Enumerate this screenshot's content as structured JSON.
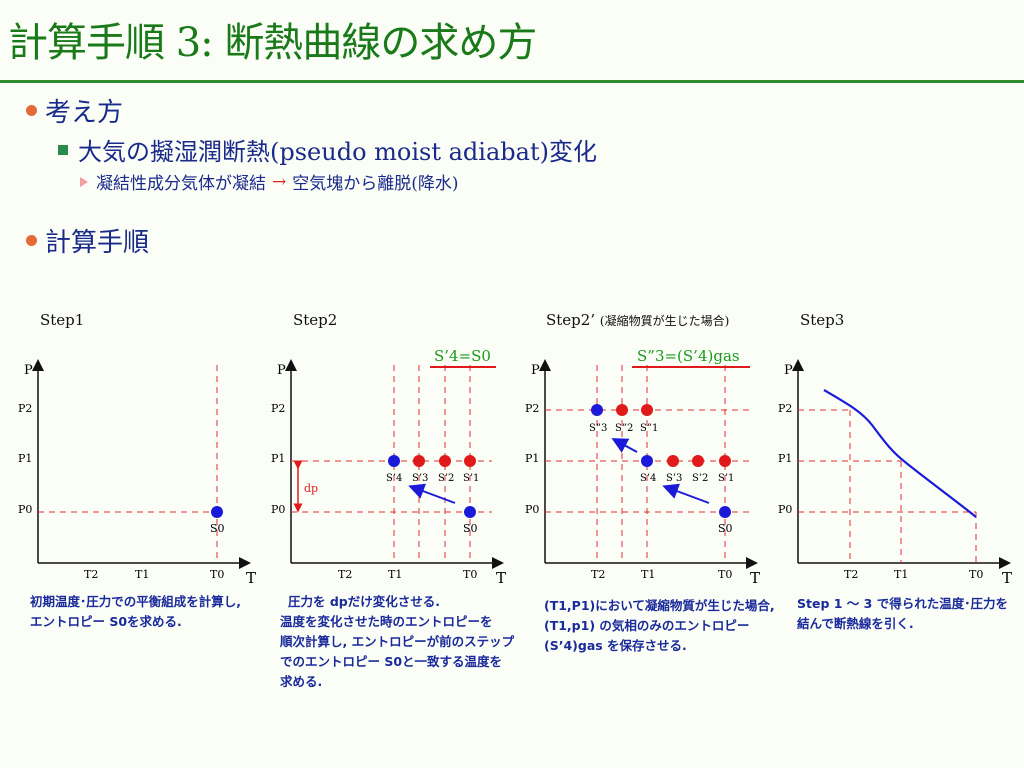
{
  "title": "計算手順 3: 断熱曲線の求め方",
  "bullets": {
    "b1": "考え方",
    "b1_sub": "大気の擬湿潤断熱(pseudo moist adiabat)変化",
    "b1_sub2_a": "凝結性成分気体が凝結",
    "b1_sub2_arrow": "→",
    "b1_sub2_b": "空気塊から離脱(降水)",
    "b2": "計算手順"
  },
  "steps": [
    {
      "label": "Step1",
      "note": ""
    },
    {
      "label": "Step2",
      "note": ""
    },
    {
      "label": "Step2’",
      "note": "(凝縮物質が生じた場合)"
    },
    {
      "label": "Step3",
      "note": ""
    }
  ],
  "annotations": {
    "s4eq": "S’4=S0",
    "s3gas": "S”3=(S’4)gas",
    "dp": "dp"
  },
  "axis": {
    "P": "P",
    "T": "T",
    "p2": "P2",
    "p1": "P1",
    "p0": "P0",
    "t2": "T2",
    "t1": "T1",
    "t0": "T0"
  },
  "points": {
    "s0": "S0",
    "s4": "S’4",
    "s3": "S’3",
    "s2": "S’2",
    "s1": "S’1",
    "dd3": "S”3",
    "dd2": "S”2",
    "dd1": "S”1"
  },
  "captions": {
    "c1": [
      "初期温度･圧力での平衡組成を計算し,",
      "エントロピー S0を求める."
    ],
    "c2": [
      "圧力を dpだけ変化させる.",
      "温度を変化させた時のエントロピーを",
      "順次計算し, エントロピーが前のステップ",
      "でのエントロピー S0と一致する温度を",
      "求める."
    ],
    "c3": [
      "(T1,P1)において凝縮物質が生じた場合,",
      "(T1,p1) の気相のみのエントロピー",
      "(S’4)gas を保存させる."
    ],
    "c4": [
      "Step 1 ～ 3 で得られた温度･圧力を",
      "結んで断熱線を引く."
    ]
  },
  "colors": {
    "title": "#1a7a1a",
    "text": "#1a2a8a",
    "dash": "#e03030",
    "blue": "#1a1ad8",
    "red": "#e01a1a"
  }
}
